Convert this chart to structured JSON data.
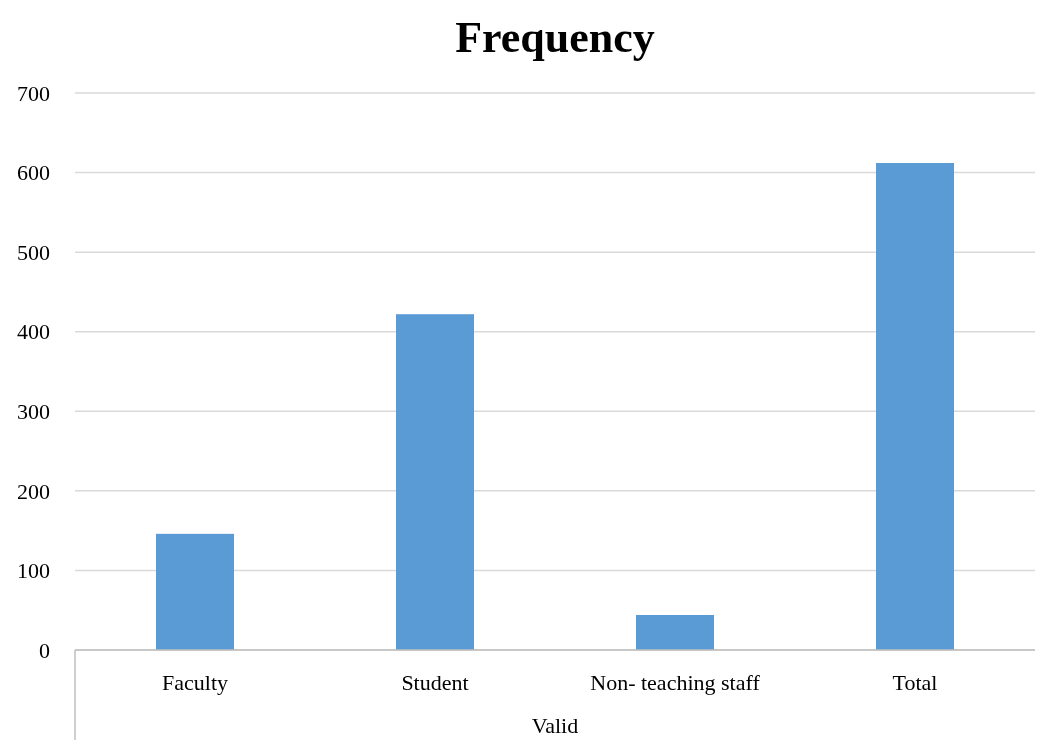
{
  "chart_data": {
    "type": "bar",
    "title": "Frequency",
    "xlabel": "Valid",
    "categories": [
      "Faculty",
      "Student",
      "Non- teaching staff",
      "Total"
    ],
    "values": [
      146,
      422,
      44,
      612
    ],
    "color": "#5b9bd5",
    "ylim": [
      0,
      700
    ],
    "yticks": [
      0,
      100,
      200,
      300,
      400,
      500,
      600,
      700
    ],
    "grid": "y"
  }
}
